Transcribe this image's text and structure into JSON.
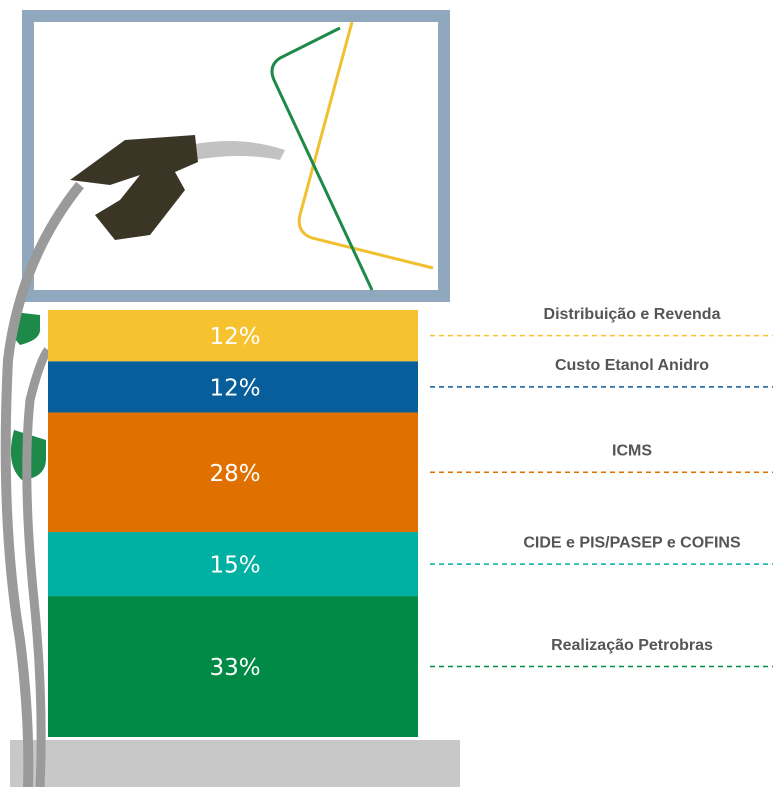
{
  "chart_data": {
    "type": "stacked-bar",
    "series": [
      {
        "name": "Distribuição e Revenda",
        "color": "#f6c22f",
        "values": [
          12
        ],
        "value_labels": [
          "12%"
        ]
      },
      {
        "name": "Custo Etanol Anidro",
        "color": "#075e9a",
        "values": [
          12
        ],
        "value_labels": [
          "12%"
        ]
      },
      {
        "name": "ICMS",
        "color": "#e07000",
        "values": [
          28
        ],
        "value_labels": [
          "28%"
        ]
      },
      {
        "name": "CIDE e PIS/PASEP e COFINS",
        "color": "#00b0a2",
        "values": [
          15
        ],
        "value_labels": [
          "15%"
        ]
      },
      {
        "name": "Realização Petrobras",
        "color": "#008a45",
        "values": [
          33
        ],
        "value_labels": [
          "33%"
        ]
      }
    ]
  }
}
